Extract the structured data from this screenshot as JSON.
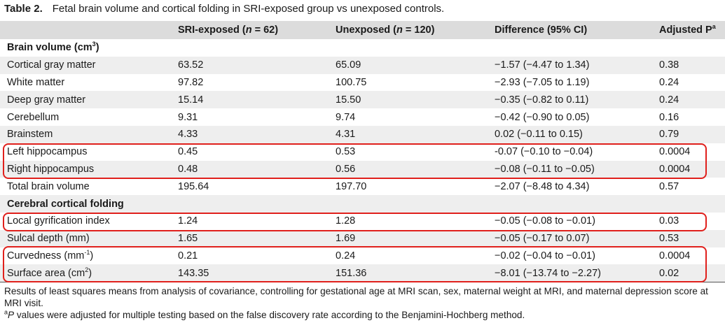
{
  "caption": {
    "label": "Table 2.",
    "text": "Fetal brain volume and cortical folding in SRI-exposed group vs unexposed controls."
  },
  "header": {
    "col0": "",
    "col1_pre": "SRI-exposed (",
    "col1_n": "n",
    "col1_post": " = 62)",
    "col2_pre": "Unexposed (",
    "col2_n": "n",
    "col2_post": " = 120)",
    "col3": "Difference (95% CI)",
    "col4": "Adjusted P",
    "col4_sup": "a"
  },
  "sections": {
    "brain_volume": {
      "label": "Brain volume (cm",
      "sup": "3",
      "close": ")"
    },
    "cortical_folding": {
      "label": "Cerebral cortical folding"
    }
  },
  "rows": [
    {
      "measure": "Cortical gray matter",
      "sri": "63.52",
      "unexposed": "65.09",
      "difference": "−1.57 (−4.47 to 1.34)",
      "p": "0.38"
    },
    {
      "measure": "White matter",
      "sri": "97.82",
      "unexposed": "100.75",
      "difference": "−2.93 (−7.05 to 1.19)",
      "p": "0.24"
    },
    {
      "measure": "Deep gray matter",
      "sri": "15.14",
      "unexposed": "15.50",
      "difference": "−0.35 (−0.82 to 0.11)",
      "p": "0.24"
    },
    {
      "measure": "Cerebellum",
      "sri": "9.31",
      "unexposed": "9.74",
      "difference": "−0.42 (−0.90 to 0.05)",
      "p": "0.16"
    },
    {
      "measure": "Brainstem",
      "sri": "4.33",
      "unexposed": "4.31",
      "difference": "0.02 (−0.11 to 0.15)",
      "p": "0.79"
    },
    {
      "measure": "Left hippocampus",
      "sri": "0.45",
      "unexposed": "0.53",
      "difference": "-0.07 (−0.10 to −0.04)",
      "p": "0.0004"
    },
    {
      "measure": "Right hippocampus",
      "sri": "0.48",
      "unexposed": "0.56",
      "difference": "−0.08 (−0.11 to −0.05)",
      "p": "0.0004"
    },
    {
      "measure": "Total brain volume",
      "sri": "195.64",
      "unexposed": "197.70",
      "difference": "−2.07 (−8.48 to 4.34)",
      "p": "0.57"
    },
    {
      "measure": "Local gyrification index",
      "sri": "1.24",
      "unexposed": "1.28",
      "difference": "−0.05 (−0.08 to −0.01)",
      "p": "0.03"
    },
    {
      "measure": "Sulcal depth (mm)",
      "sri": "1.65",
      "unexposed": "1.69",
      "difference": "−0.05 (−0.17 to 0.07)",
      "p": "0.53"
    },
    {
      "measure_pre": "Curvedness (mm",
      "measure_sup": "-1",
      "measure_post": ")",
      "sri": "0.21",
      "unexposed": "0.24",
      "difference": "−0.02 (−0.04 to −0.01)",
      "p": "0.0004"
    },
    {
      "measure_pre": "Surface area (cm",
      "measure_sup": "2",
      "measure_post": ")",
      "sri": "143.35",
      "unexposed": "151.36",
      "difference": "−8.01 (−13.74 to −2.27)",
      "p": "0.02"
    }
  ],
  "notes": {
    "note1": "Results of least squares means from analysis of covariance, controlling for gestational age at MRI scan, sex, maternal weight at MRI, and maternal depression score at MRI visit.",
    "note2_sup": "a",
    "note2_p": "P",
    "note2_text": " values were adjusted for multiple testing based on the false discovery rate according to the Benjamini-Hochberg method."
  },
  "colors": {
    "highlight_box": "#e0201c",
    "header_bg": "#dcdcdc",
    "alt_row_bg": "#eeeeee"
  }
}
